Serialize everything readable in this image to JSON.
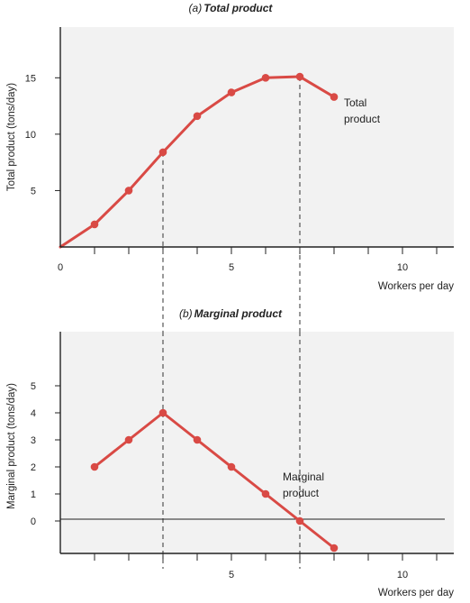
{
  "accent_color": "#d94a45",
  "chart_data": [
    {
      "type": "line",
      "title_prefix": "(a)",
      "title": "Total product",
      "xlabel": "Workers per day",
      "ylabel": "Total product (tons/day)",
      "xlim": [
        0,
        11.5
      ],
      "ylim": [
        0,
        19.5
      ],
      "x_ticks": [
        1,
        2,
        3,
        4,
        5,
        6,
        7,
        8,
        9,
        10,
        11
      ],
      "x_tick_labels": [
        {
          "x": 0,
          "label": "0"
        },
        {
          "x": 5,
          "label": "5"
        },
        {
          "x": 10,
          "label": "10"
        }
      ],
      "y_ticks": [
        5,
        10,
        15
      ],
      "y_tick_labels": [
        "5",
        "10",
        "15"
      ],
      "x": [
        0,
        1,
        2,
        3,
        4,
        5,
        6,
        7,
        8
      ],
      "y": [
        0,
        2,
        5,
        8.4,
        11.6,
        13.7,
        15,
        15.1,
        13.3
      ],
      "guide_lines_x": [
        3,
        7
      ],
      "series_label": [
        "Total",
        "product"
      ]
    },
    {
      "type": "line",
      "title_prefix": "(b)",
      "title": "Marginal product",
      "xlabel": "Workers per day",
      "ylabel": "Marginal product (tons/day)",
      "xlim": [
        0,
        11.5
      ],
      "ylim": [
        -1.2,
        7
      ],
      "x_ticks": [
        1,
        2,
        3,
        4,
        5,
        6,
        7,
        8,
        9,
        10,
        11
      ],
      "x_tick_labels": [
        {
          "x": 5,
          "label": "5"
        },
        {
          "x": 10,
          "label": "10"
        }
      ],
      "y_ticks": [
        0,
        1,
        2,
        3,
        4,
        5
      ],
      "y_tick_labels": [
        "0",
        "1",
        "2",
        "3",
        "4",
        "5"
      ],
      "x": [
        1,
        2,
        3,
        4,
        5,
        6,
        7,
        8
      ],
      "y": [
        2,
        3,
        4,
        3,
        2,
        1,
        0,
        -1
      ],
      "guide_lines_x": [
        3,
        7
      ],
      "series_label": [
        "Marginal",
        "product"
      ]
    }
  ]
}
